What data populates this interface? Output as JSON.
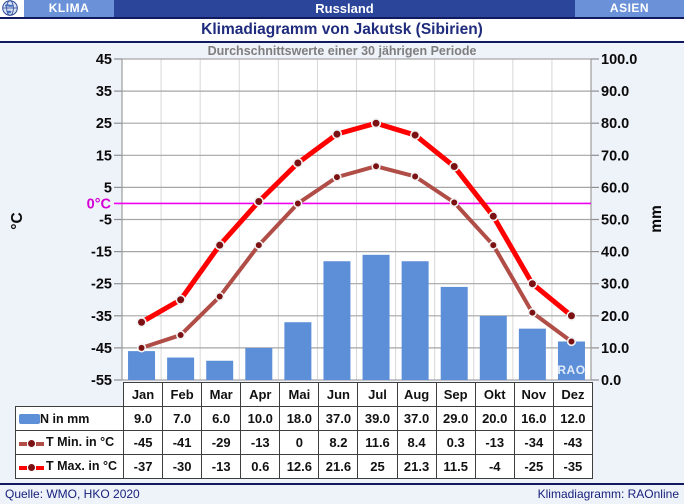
{
  "header": {
    "left_tab": "KLIMA",
    "country_bar": "Russland",
    "right_tab": "ASIEN",
    "page_title": "Klimadiagramm von Jakutsk (Sibirien)",
    "subtitle": "Durchschnittswerte einer 30 jährigen Periode"
  },
  "chart_data": {
    "type": "bar+line",
    "title": "Klimadiagramm von Jakutsk (Sibirien)",
    "subtitle": "Durchschnittswerte einer 30 jährigen Periode",
    "categories": [
      "Jan",
      "Feb",
      "Mar",
      "Apr",
      "Mai",
      "Jun",
      "Jul",
      "Aug",
      "Sep",
      "Okt",
      "Nov",
      "Dez"
    ],
    "series": [
      {
        "name": "N in mm",
        "type": "bar",
        "axis": "right",
        "color": "#5C8FD7",
        "values": [
          9.0,
          7.0,
          6.0,
          10.0,
          18.0,
          37.0,
          39.0,
          37.0,
          29.0,
          20.0,
          16.0,
          12.0
        ]
      },
      {
        "name": "T Min. in °C",
        "type": "line",
        "axis": "left",
        "color": "#B04D46",
        "marker_color": "#7B1113",
        "values": [
          -45,
          -41,
          -29,
          -13,
          0,
          8.2,
          11.6,
          8.4,
          0.3,
          -13,
          -34,
          -43
        ]
      },
      {
        "name": "T Max. in °C",
        "type": "line",
        "axis": "left",
        "color": "#FF0000",
        "marker_color": "#7B1113",
        "values": [
          -37,
          -30,
          -13,
          0.6,
          12.6,
          21.6,
          25,
          21.3,
          11.5,
          -4,
          -25,
          -35
        ]
      }
    ],
    "left_axis": {
      "label": "°C",
      "min": -55,
      "max": 45,
      "tick_labels": [
        "45",
        "35",
        "25",
        "15",
        "5",
        "-5",
        "-15",
        "-25",
        "-35",
        "-45",
        "-55"
      ],
      "tick_values": [
        45,
        35,
        25,
        15,
        5,
        -5,
        -15,
        -25,
        -35,
        -45,
        -55
      ]
    },
    "right_axis": {
      "label": "mm",
      "min": 0,
      "max": 100,
      "tick_labels": [
        "100.0",
        "90.0",
        "80.0",
        "70.0",
        "60.0",
        "50.0",
        "40.0",
        "30.0",
        "20.0",
        "10.0",
        "0.0"
      ],
      "tick_values": [
        100,
        90,
        80,
        70,
        60,
        50,
        40,
        30,
        20,
        10,
        0
      ]
    },
    "zero_line": {
      "label": "0°C",
      "value": 0,
      "color": "#F000F0",
      "label_color": "#D400D4"
    },
    "watermark": "RAO",
    "grid": {
      "h_color": "#A6A6A6",
      "v_color": "#D8D8D8"
    },
    "legend_position": "table-below"
  },
  "table": {
    "rows": [
      {
        "label": "N in mm",
        "swatch": "bar",
        "color": "#5C8FD7",
        "dot": "#5C8FD7",
        "values": [
          "9.0",
          "7.0",
          "6.0",
          "10.0",
          "18.0",
          "37.0",
          "39.0",
          "37.0",
          "29.0",
          "20.0",
          "16.0",
          "12.0"
        ]
      },
      {
        "label": "T Min. in °C",
        "swatch": "line",
        "color": "#B04D46",
        "dot": "#7B1113",
        "values": [
          "-45",
          "-41",
          "-29",
          "-13",
          "0",
          "8.2",
          "11.6",
          "8.4",
          "0.3",
          "-13",
          "-34",
          "-43"
        ]
      },
      {
        "label": "T Max. in °C",
        "swatch": "line",
        "color": "#FF0000",
        "dot": "#7B1113",
        "values": [
          "-37",
          "-30",
          "-13",
          "0.6",
          "12.6",
          "21.6",
          "25",
          "21.3",
          "11.5",
          "-4",
          "-25",
          "-35"
        ]
      }
    ]
  },
  "footer": {
    "left": "Quelle:  WMO, HKO 2020",
    "right": "Klimadiagramm:  RAOnline"
  }
}
